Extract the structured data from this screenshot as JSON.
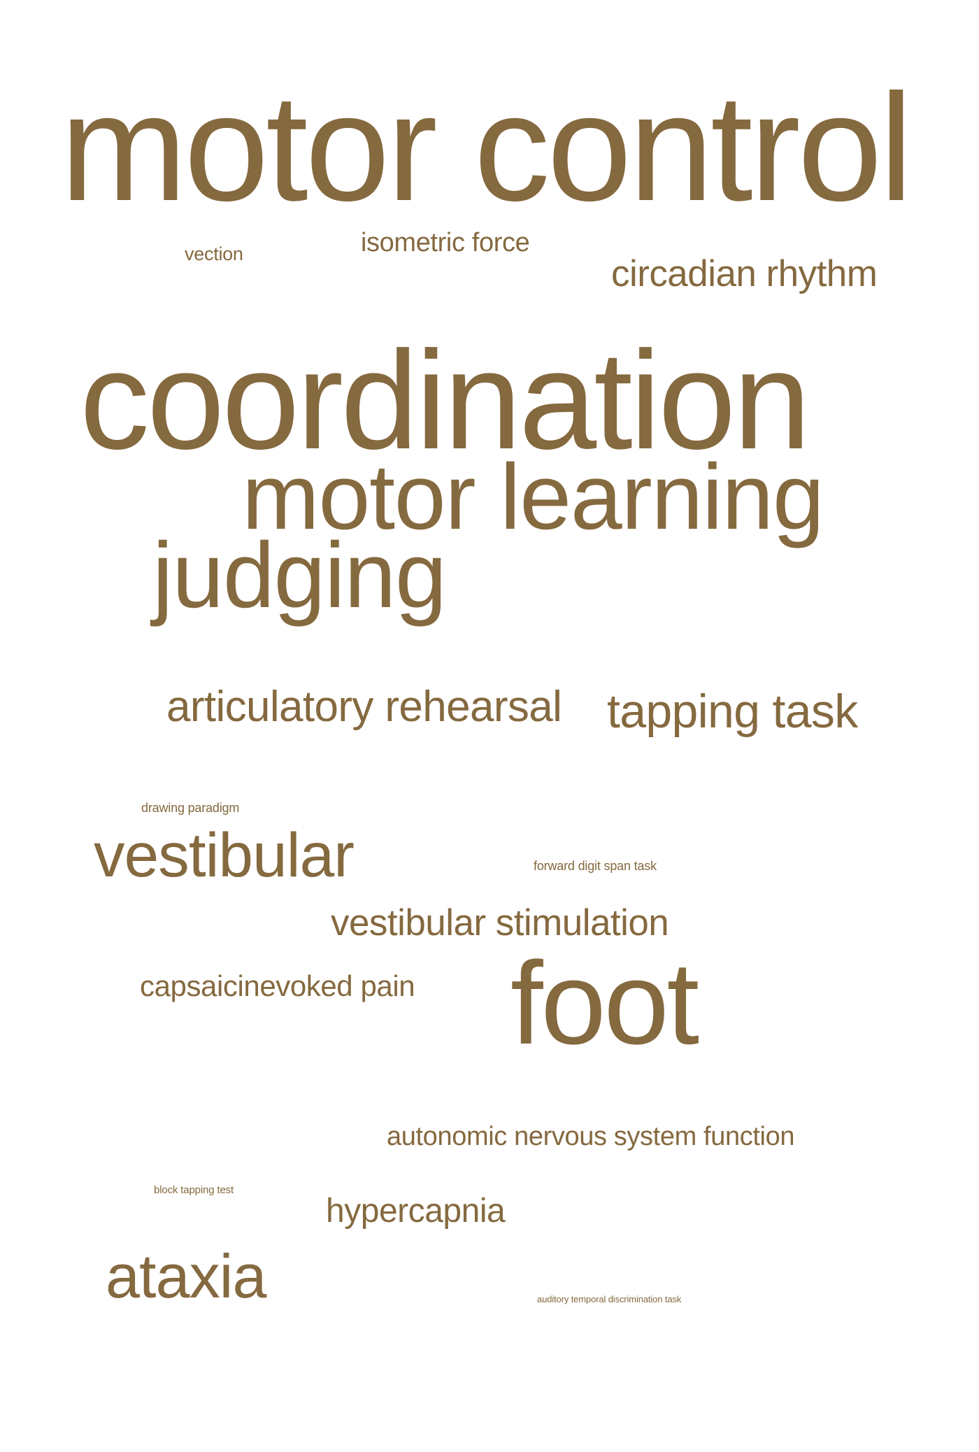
{
  "colors": {
    "background": "#ffffff",
    "word": "#85693f"
  },
  "cloud": {
    "words": [
      {
        "text": "motor control",
        "weight": 100
      },
      {
        "text": "vection",
        "weight": 12
      },
      {
        "text": "isometric force",
        "weight": 17
      },
      {
        "text": "circadian rhythm",
        "weight": 24
      },
      {
        "text": "coordination",
        "weight": 92
      },
      {
        "text": "motor learning",
        "weight": 61
      },
      {
        "text": "judging",
        "weight": 61
      },
      {
        "text": "articulatory rehearsal",
        "weight": 28
      },
      {
        "text": "tapping task",
        "weight": 31
      },
      {
        "text": "drawing paradigm",
        "weight": 8
      },
      {
        "text": "vestibular",
        "weight": 41
      },
      {
        "text": "forward digit span task",
        "weight": 8
      },
      {
        "text": "vestibular stimulation",
        "weight": 24
      },
      {
        "text": "capsaicinevoked pain",
        "weight": 19
      },
      {
        "text": "foot",
        "weight": 77
      },
      {
        "text": "autonomic nervous system function",
        "weight": 17
      },
      {
        "text": "block tapping test",
        "weight": 7
      },
      {
        "text": "hypercapnia",
        "weight": 22
      },
      {
        "text": "ataxia",
        "weight": 40
      },
      {
        "text": "auditory temporal discrimination task",
        "weight": 6
      }
    ]
  }
}
